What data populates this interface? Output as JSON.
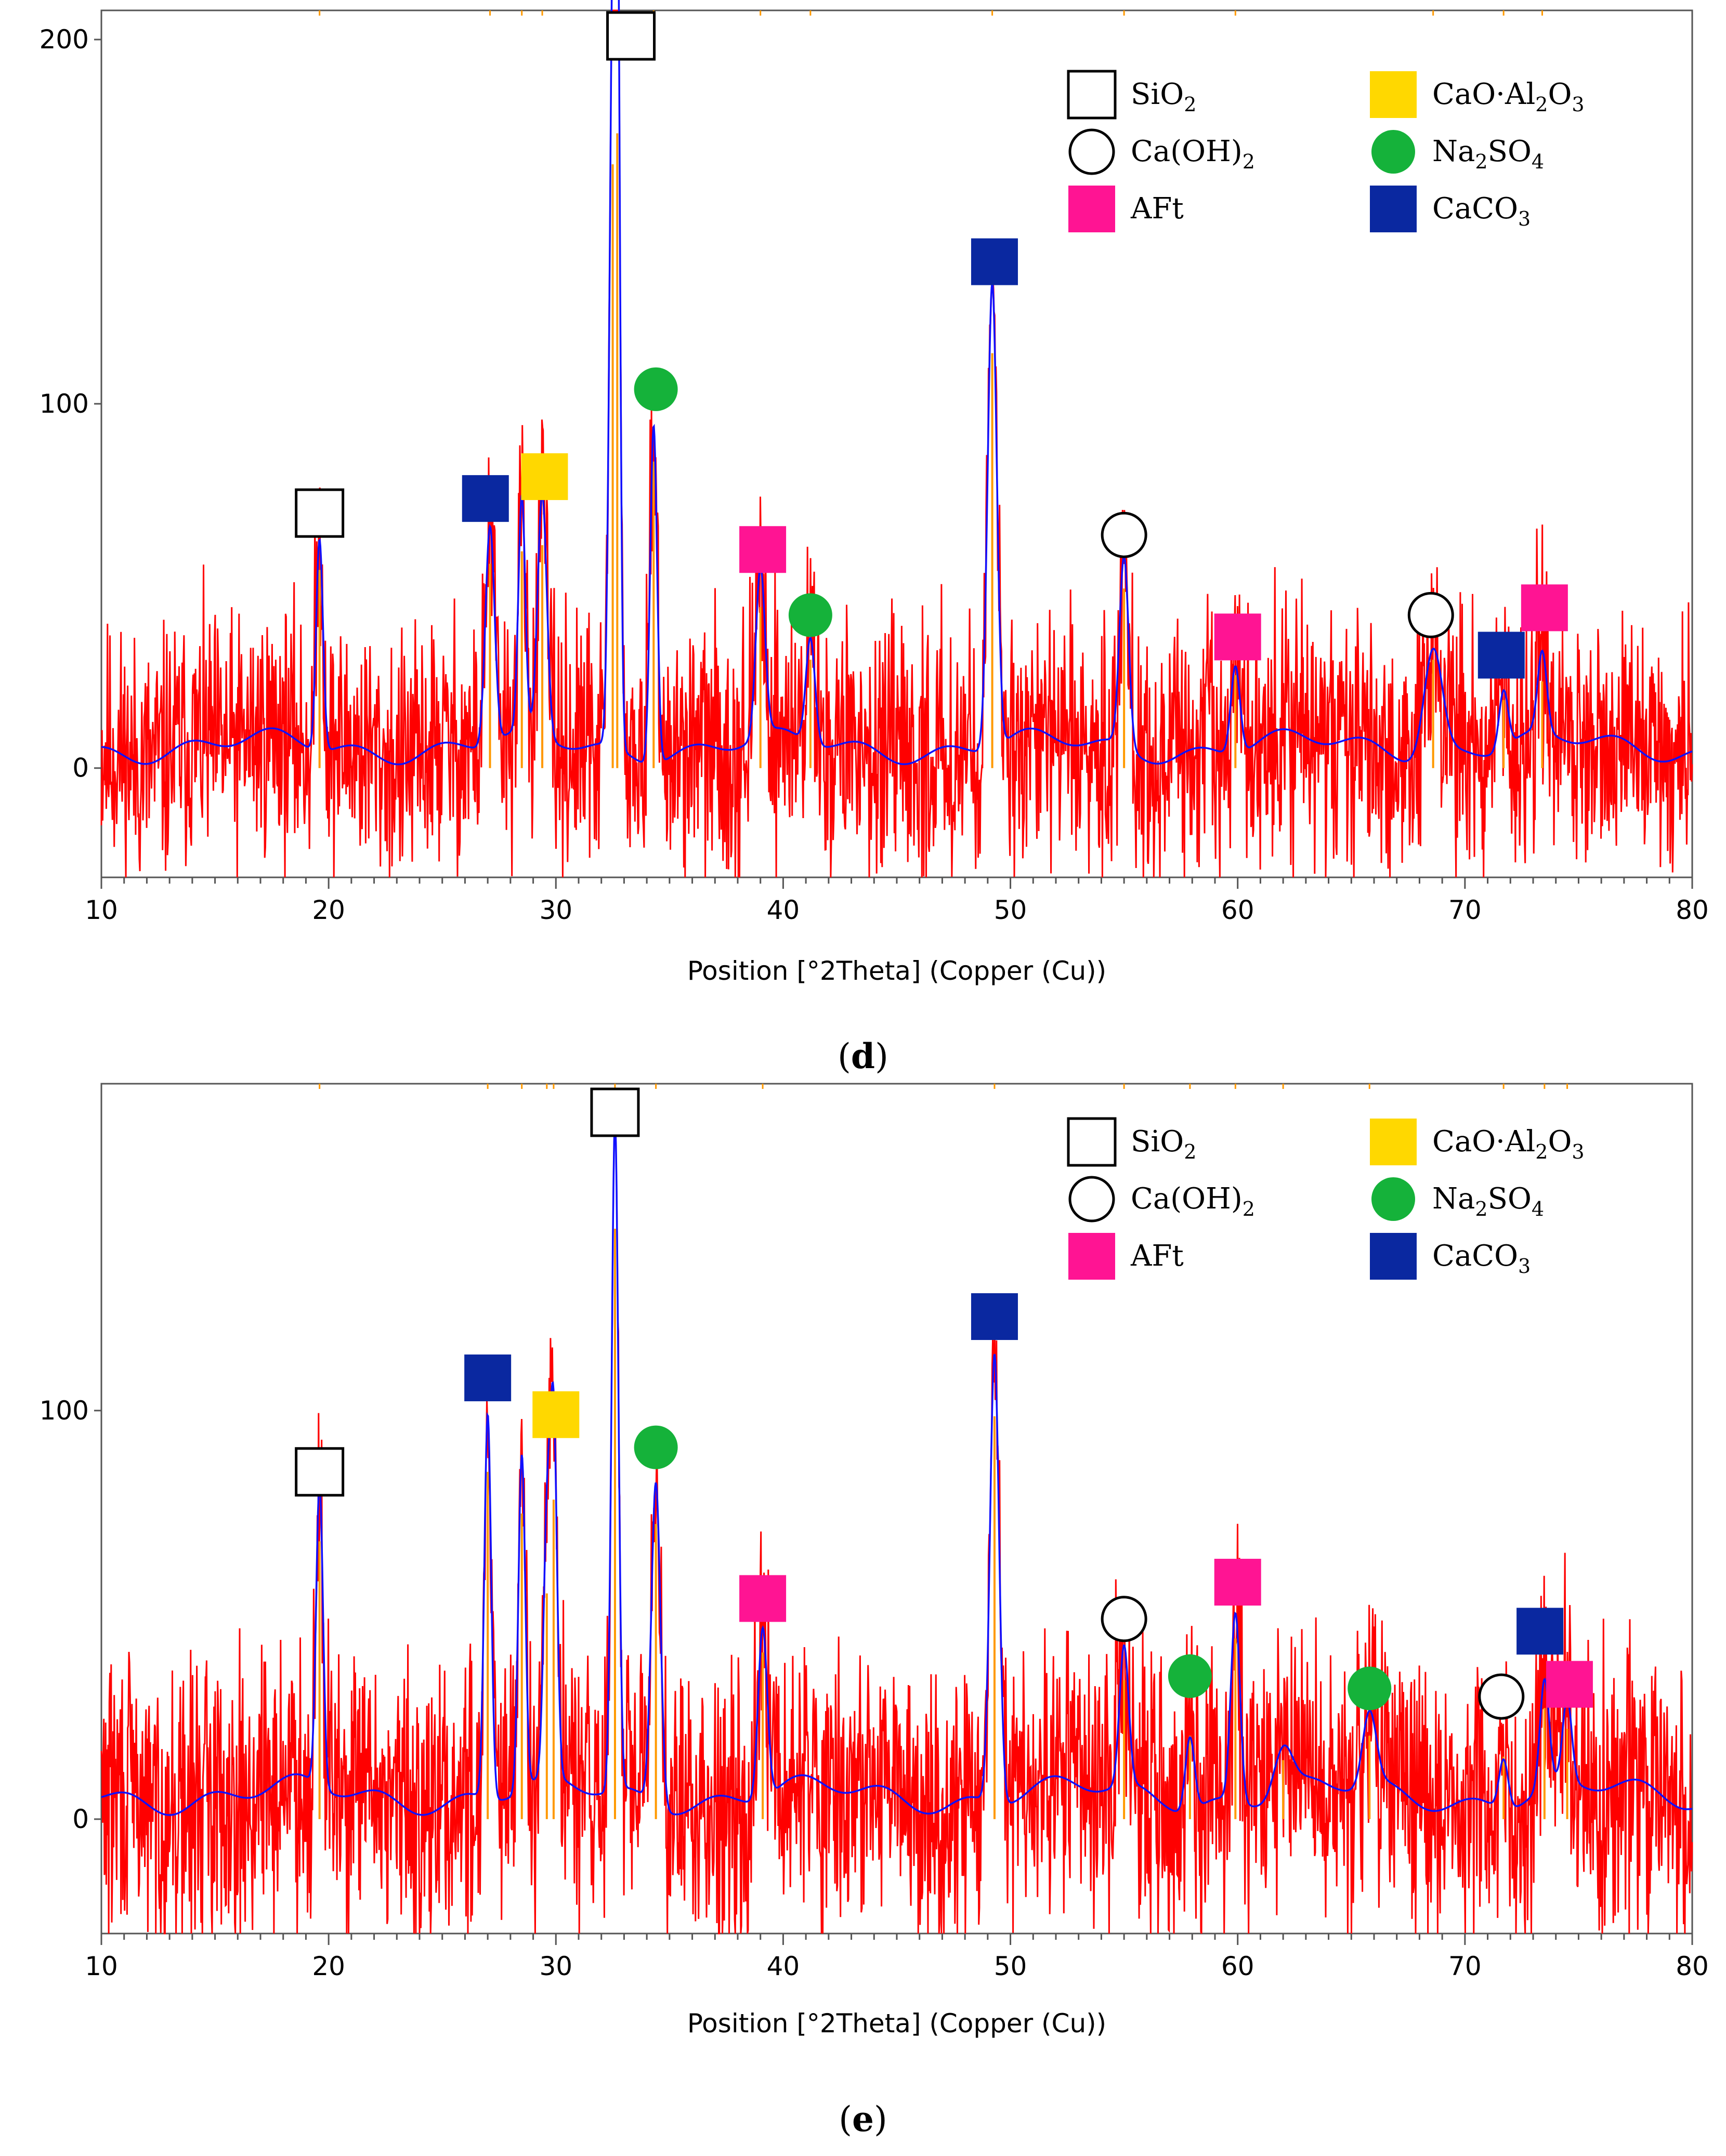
{
  "figure": {
    "xlabel": "Position [°2Theta] (Copper (Cu))"
  },
  "legend": {
    "items": [
      {
        "key": "SiO2",
        "base": "SiO",
        "sub": "2",
        "marker": "open-square"
      },
      {
        "key": "CaOAl2O3",
        "base": "CaO·Al",
        "sub": "2",
        "base2": "O",
        "sub2": "3",
        "marker": "yellow-square"
      },
      {
        "key": "CaOH2",
        "base": "Ca(OH)",
        "sub": "2",
        "marker": "open-circle"
      },
      {
        "key": "Na2SO4",
        "base": "Na",
        "sub": "2",
        "base2": "SO",
        "sub2": "4",
        "marker": "green-circle"
      },
      {
        "key": "AFt",
        "base": "AFt",
        "marker": "pink-square"
      },
      {
        "key": "CaCO3",
        "base": "CaCO",
        "sub": "3",
        "marker": "blue-square"
      }
    ]
  },
  "colors": {
    "measured": "#ff0000",
    "fit": "#1010ff",
    "reference": "#ff9900",
    "SiO2": "#000000",
    "CaOAl2O3": "#ffd800",
    "CaOH2": "#000000",
    "Na2SO4": "#15b23a",
    "AFt": "#ff1493",
    "CaCO3": "#0a28a0"
  },
  "chart_data": [
    {
      "panel_label": "d",
      "type": "line",
      "xlabel": "Position [°2Theta] (Copper (Cu))",
      "xlim": [
        10,
        80
      ],
      "ylim": [
        -30,
        208
      ],
      "xticks": [
        "10",
        "20",
        "30",
        "40",
        "50",
        "60",
        "70",
        "80"
      ],
      "yticks": [
        "0",
        "100",
        "200"
      ],
      "yticks_values": [
        0,
        100,
        200
      ],
      "peaks": [
        {
          "x": 19.6,
          "y": 64,
          "w": 0.15
        },
        {
          "x": 27.1,
          "y": 66,
          "w": 0.2
        },
        {
          "x": 28.5,
          "y": 70,
          "w": 0.15
        },
        {
          "x": 29.4,
          "y": 72,
          "w": 0.2
        },
        {
          "x": 32.5,
          "y": 195,
          "w": 0.15
        },
        {
          "x": 32.7,
          "y": 205,
          "w": 0.12
        },
        {
          "x": 34.3,
          "y": 99,
          "w": 0.15
        },
        {
          "x": 39.0,
          "y": 52,
          "w": 0.2
        },
        {
          "x": 41.2,
          "y": 35,
          "w": 0.2
        },
        {
          "x": 49.2,
          "y": 134,
          "w": 0.2
        },
        {
          "x": 55.0,
          "y": 58,
          "w": 0.2
        },
        {
          "x": 59.9,
          "y": 30,
          "w": 0.2
        },
        {
          "x": 68.6,
          "y": 35,
          "w": 0.4
        },
        {
          "x": 71.7,
          "y": 22,
          "w": 0.2
        },
        {
          "x": 73.4,
          "y": 28,
          "w": 0.2
        }
      ],
      "markers": [
        {
          "phase": "SiO2",
          "x": 19.6,
          "y": 70
        },
        {
          "phase": "CaCO3",
          "x": 26.9,
          "y": 74
        },
        {
          "phase": "CaOAl2O3",
          "x": 29.5,
          "y": 80
        },
        {
          "phase": "SiO2",
          "x": 33.3,
          "y": 201
        },
        {
          "phase": "Na2SO4",
          "x": 34.4,
          "y": 104
        },
        {
          "phase": "AFt",
          "x": 39.1,
          "y": 60
        },
        {
          "phase": "Na2SO4",
          "x": 41.2,
          "y": 42
        },
        {
          "phase": "CaCO3",
          "x": 49.3,
          "y": 139
        },
        {
          "phase": "CaOH2",
          "x": 55.0,
          "y": 64
        },
        {
          "phase": "AFt",
          "x": 60.0,
          "y": 36
        },
        {
          "phase": "CaOH2",
          "x": 68.5,
          "y": 42
        },
        {
          "phase": "CaCO3",
          "x": 71.6,
          "y": 31
        },
        {
          "phase": "AFt",
          "x": 73.5,
          "y": 44
        }
      ]
    },
    {
      "panel_label": "e",
      "type": "line",
      "xlabel": "Position [°2Theta] (Copper (Cu))",
      "xlim": [
        10,
        80
      ],
      "ylim": [
        -28,
        180
      ],
      "xticks": [
        "10",
        "20",
        "30",
        "40",
        "50",
        "60",
        "70",
        "80"
      ],
      "yticks": [
        "0",
        "100"
      ],
      "yticks_values": [
        0,
        100
      ],
      "peaks": [
        {
          "x": 19.6,
          "y": 80,
          "w": 0.15
        },
        {
          "x": 27.0,
          "y": 100,
          "w": 0.15
        },
        {
          "x": 28.5,
          "y": 88,
          "w": 0.15
        },
        {
          "x": 29.6,
          "y": 65,
          "w": 0.15
        },
        {
          "x": 29.9,
          "y": 92,
          "w": 0.15
        },
        {
          "x": 32.6,
          "y": 170,
          "w": 0.15
        },
        {
          "x": 34.4,
          "y": 85,
          "w": 0.2
        },
        {
          "x": 39.1,
          "y": 48,
          "w": 0.2
        },
        {
          "x": 49.3,
          "y": 116,
          "w": 0.2
        },
        {
          "x": 55.0,
          "y": 40,
          "w": 0.2
        },
        {
          "x": 57.9,
          "y": 24,
          "w": 0.2
        },
        {
          "x": 59.9,
          "y": 52,
          "w": 0.2
        },
        {
          "x": 62.0,
          "y": 17,
          "w": 0.4
        },
        {
          "x": 65.8,
          "y": 24,
          "w": 0.3
        },
        {
          "x": 71.7,
          "y": 18,
          "w": 0.2
        },
        {
          "x": 73.5,
          "y": 32,
          "w": 0.2
        },
        {
          "x": 74.5,
          "y": 26,
          "w": 0.2
        }
      ],
      "markers": [
        {
          "phase": "SiO2",
          "x": 19.6,
          "y": 85
        },
        {
          "phase": "CaCO3",
          "x": 27.0,
          "y": 108
        },
        {
          "phase": "CaOAl2O3",
          "x": 30.0,
          "y": 99
        },
        {
          "phase": "SiO2",
          "x": 32.6,
          "y": 173
        },
        {
          "phase": "Na2SO4",
          "x": 34.4,
          "y": 91
        },
        {
          "phase": "AFt",
          "x": 39.1,
          "y": 54
        },
        {
          "phase": "CaCO3",
          "x": 49.3,
          "y": 123
        },
        {
          "phase": "CaOH2",
          "x": 55.0,
          "y": 49
        },
        {
          "phase": "Na2SO4",
          "x": 57.9,
          "y": 35
        },
        {
          "phase": "AFt",
          "x": 60.0,
          "y": 58
        },
        {
          "phase": "Na2SO4",
          "x": 65.8,
          "y": 32
        },
        {
          "phase": "CaOH2",
          "x": 71.6,
          "y": 30
        },
        {
          "phase": "CaCO3",
          "x": 73.3,
          "y": 46
        },
        {
          "phase": "AFt",
          "x": 74.6,
          "y": 33
        }
      ]
    }
  ]
}
